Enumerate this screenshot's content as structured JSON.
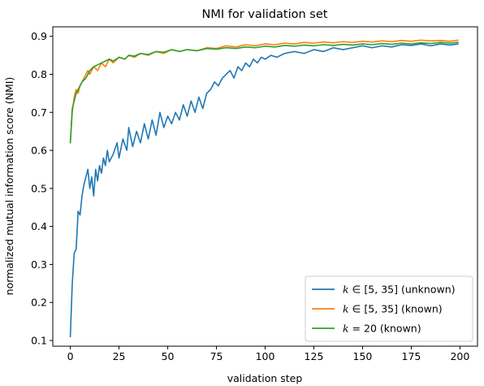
{
  "chart_data": {
    "type": "line",
    "title": "NMI for validation set",
    "xlabel": "validation step",
    "ylabel": "normalized mutual information score (NMI)",
    "xlim": [
      -9,
      209
    ],
    "ylim": [
      0.085,
      0.925
    ],
    "x_ticks": [
      0,
      25,
      50,
      75,
      100,
      125,
      150,
      175,
      200
    ],
    "y_ticks": [
      0.1,
      0.2,
      0.3,
      0.4,
      0.5,
      0.6,
      0.7,
      0.8,
      0.9
    ],
    "grid": false,
    "legend_position": "bottom-right",
    "series": [
      {
        "name": "k ∈ [5, 35] (unknown)",
        "label_math": "k",
        "label_rest": " ∈ [5, 35] (unknown)",
        "color": "#1f77b4",
        "points": [
          [
            0,
            0.11
          ],
          [
            1,
            0.25
          ],
          [
            2,
            0.33
          ],
          [
            3,
            0.34
          ],
          [
            4,
            0.44
          ],
          [
            5,
            0.43
          ],
          [
            6,
            0.48
          ],
          [
            7,
            0.51
          ],
          [
            8,
            0.53
          ],
          [
            9,
            0.55
          ],
          [
            10,
            0.5
          ],
          [
            11,
            0.53
          ],
          [
            12,
            0.48
          ],
          [
            13,
            0.55
          ],
          [
            14,
            0.52
          ],
          [
            15,
            0.56
          ],
          [
            16,
            0.54
          ],
          [
            17,
            0.58
          ],
          [
            18,
            0.56
          ],
          [
            19,
            0.6
          ],
          [
            20,
            0.57
          ],
          [
            22,
            0.59
          ],
          [
            24,
            0.62
          ],
          [
            25,
            0.58
          ],
          [
            27,
            0.63
          ],
          [
            29,
            0.6
          ],
          [
            30,
            0.66
          ],
          [
            32,
            0.61
          ],
          [
            34,
            0.65
          ],
          [
            36,
            0.62
          ],
          [
            38,
            0.67
          ],
          [
            40,
            0.63
          ],
          [
            42,
            0.68
          ],
          [
            44,
            0.64
          ],
          [
            46,
            0.7
          ],
          [
            48,
            0.66
          ],
          [
            50,
            0.69
          ],
          [
            52,
            0.67
          ],
          [
            54,
            0.7
          ],
          [
            56,
            0.68
          ],
          [
            58,
            0.72
          ],
          [
            60,
            0.69
          ],
          [
            62,
            0.73
          ],
          [
            64,
            0.7
          ],
          [
            66,
            0.74
          ],
          [
            68,
            0.71
          ],
          [
            70,
            0.75
          ],
          [
            72,
            0.76
          ],
          [
            74,
            0.78
          ],
          [
            76,
            0.77
          ],
          [
            78,
            0.79
          ],
          [
            80,
            0.8
          ],
          [
            82,
            0.81
          ],
          [
            84,
            0.79
          ],
          [
            86,
            0.82
          ],
          [
            88,
            0.81
          ],
          [
            90,
            0.83
          ],
          [
            92,
            0.82
          ],
          [
            94,
            0.84
          ],
          [
            96,
            0.83
          ],
          [
            98,
            0.845
          ],
          [
            100,
            0.84
          ],
          [
            103,
            0.85
          ],
          [
            106,
            0.845
          ],
          [
            110,
            0.855
          ],
          [
            115,
            0.86
          ],
          [
            120,
            0.855
          ],
          [
            125,
            0.865
          ],
          [
            130,
            0.86
          ],
          [
            135,
            0.87
          ],
          [
            140,
            0.865
          ],
          [
            145,
            0.87
          ],
          [
            150,
            0.875
          ],
          [
            155,
            0.87
          ],
          [
            160,
            0.875
          ],
          [
            165,
            0.872
          ],
          [
            170,
            0.878
          ],
          [
            175,
            0.876
          ],
          [
            180,
            0.88
          ],
          [
            185,
            0.875
          ],
          [
            190,
            0.88
          ],
          [
            195,
            0.877
          ],
          [
            199,
            0.88
          ]
        ]
      },
      {
        "name": "k ∈ [5, 35] (known)",
        "label_math": "k",
        "label_rest": " ∈ [5, 35] (known)",
        "color": "#ff7f0e",
        "points": [
          [
            0,
            0.62
          ],
          [
            1,
            0.7
          ],
          [
            2,
            0.74
          ],
          [
            3,
            0.76
          ],
          [
            4,
            0.75
          ],
          [
            5,
            0.77
          ],
          [
            6,
            0.78
          ],
          [
            7,
            0.79
          ],
          [
            8,
            0.8
          ],
          [
            9,
            0.81
          ],
          [
            10,
            0.8
          ],
          [
            12,
            0.82
          ],
          [
            14,
            0.81
          ],
          [
            16,
            0.83
          ],
          [
            18,
            0.82
          ],
          [
            20,
            0.84
          ],
          [
            22,
            0.83
          ],
          [
            25,
            0.845
          ],
          [
            28,
            0.84
          ],
          [
            30,
            0.85
          ],
          [
            33,
            0.845
          ],
          [
            36,
            0.855
          ],
          [
            40,
            0.85
          ],
          [
            44,
            0.86
          ],
          [
            48,
            0.855
          ],
          [
            52,
            0.865
          ],
          [
            56,
            0.86
          ],
          [
            60,
            0.865
          ],
          [
            65,
            0.862
          ],
          [
            70,
            0.87
          ],
          [
            75,
            0.868
          ],
          [
            80,
            0.875
          ],
          [
            85,
            0.872
          ],
          [
            90,
            0.878
          ],
          [
            95,
            0.875
          ],
          [
            100,
            0.88
          ],
          [
            105,
            0.878
          ],
          [
            110,
            0.882
          ],
          [
            115,
            0.88
          ],
          [
            120,
            0.884
          ],
          [
            125,
            0.882
          ],
          [
            130,
            0.885
          ],
          [
            135,
            0.883
          ],
          [
            140,
            0.886
          ],
          [
            145,
            0.884
          ],
          [
            150,
            0.887
          ],
          [
            155,
            0.885
          ],
          [
            160,
            0.888
          ],
          [
            165,
            0.886
          ],
          [
            170,
            0.889
          ],
          [
            175,
            0.887
          ],
          [
            180,
            0.89
          ],
          [
            185,
            0.888
          ],
          [
            190,
            0.889
          ],
          [
            195,
            0.887
          ],
          [
            199,
            0.89
          ]
        ]
      },
      {
        "name": "k = 20 (known)",
        "label_math": "k",
        "label_rest": " = 20 (known)",
        "color": "#2ca02c",
        "points": [
          [
            0,
            0.62
          ],
          [
            1,
            0.71
          ],
          [
            2,
            0.73
          ],
          [
            3,
            0.75
          ],
          [
            4,
            0.76
          ],
          [
            5,
            0.77
          ],
          [
            6,
            0.78
          ],
          [
            7,
            0.785
          ],
          [
            8,
            0.79
          ],
          [
            9,
            0.8
          ],
          [
            10,
            0.81
          ],
          [
            12,
            0.82
          ],
          [
            14,
            0.825
          ],
          [
            16,
            0.83
          ],
          [
            18,
            0.835
          ],
          [
            20,
            0.84
          ],
          [
            22,
            0.835
          ],
          [
            25,
            0.845
          ],
          [
            28,
            0.84
          ],
          [
            30,
            0.85
          ],
          [
            33,
            0.848
          ],
          [
            36,
            0.855
          ],
          [
            40,
            0.852
          ],
          [
            44,
            0.86
          ],
          [
            48,
            0.858
          ],
          [
            52,
            0.865
          ],
          [
            56,
            0.86
          ],
          [
            60,
            0.865
          ],
          [
            65,
            0.862
          ],
          [
            70,
            0.868
          ],
          [
            75,
            0.866
          ],
          [
            80,
            0.87
          ],
          [
            85,
            0.868
          ],
          [
            90,
            0.872
          ],
          [
            95,
            0.87
          ],
          [
            100,
            0.874
          ],
          [
            105,
            0.872
          ],
          [
            110,
            0.876
          ],
          [
            115,
            0.874
          ],
          [
            120,
            0.877
          ],
          [
            125,
            0.875
          ],
          [
            130,
            0.878
          ],
          [
            135,
            0.876
          ],
          [
            140,
            0.879
          ],
          [
            145,
            0.877
          ],
          [
            150,
            0.88
          ],
          [
            155,
            0.878
          ],
          [
            160,
            0.881
          ],
          [
            165,
            0.879
          ],
          [
            170,
            0.882
          ],
          [
            175,
            0.88
          ],
          [
            180,
            0.883
          ],
          [
            185,
            0.881
          ],
          [
            190,
            0.884
          ],
          [
            195,
            0.882
          ],
          [
            199,
            0.884
          ]
        ]
      }
    ]
  }
}
